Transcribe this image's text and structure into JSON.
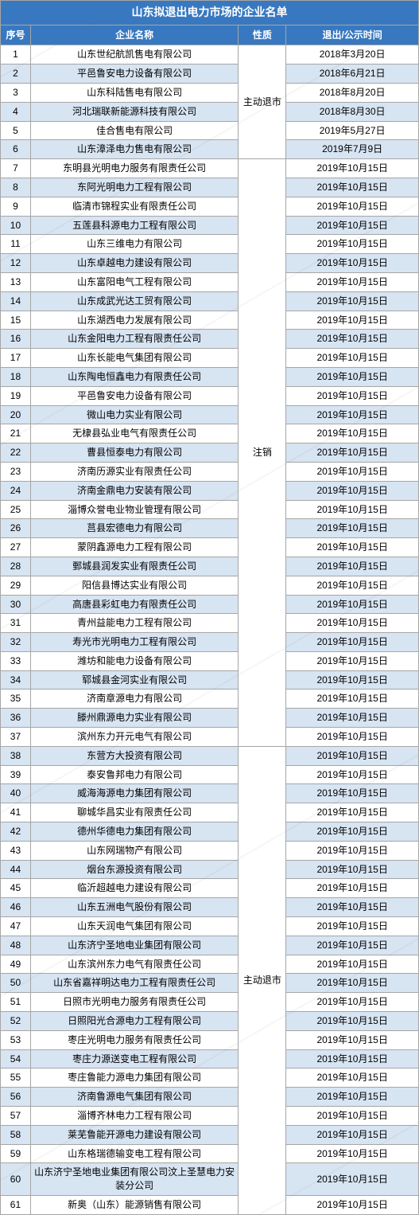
{
  "title": "山东拟退出电力市场的企业名单",
  "columns": [
    "序号",
    "企业名称",
    "性质",
    "退出/公示时间"
  ],
  "colors": {
    "header_bg": "#3878c0",
    "header_fg": "#ffffff",
    "row_odd_bg": "#ffffff",
    "row_even_bg": "#d7e4f2",
    "border": "#a6a6a6"
  },
  "type_groups": [
    {
      "label": "主动退市",
      "start": 1,
      "end": 6
    },
    {
      "label": "注销",
      "start": 7,
      "end": 37
    },
    {
      "label": "主动退市",
      "start": 38,
      "end": 61
    }
  ],
  "rows": [
    {
      "seq": 1,
      "name": "山东世纪航凯售电有限公司",
      "date": "2018年3月20日"
    },
    {
      "seq": 2,
      "name": "平邑鲁安电力设备有限公司",
      "date": "2018年6月21日"
    },
    {
      "seq": 3,
      "name": "山东科陆售电有限公司",
      "date": "2018年8月20日"
    },
    {
      "seq": 4,
      "name": "河北瑞联新能源科技有限公司",
      "date": "2018年8月30日"
    },
    {
      "seq": 5,
      "name": "佳合售电有限公司",
      "date": "2019年5月27日"
    },
    {
      "seq": 6,
      "name": "山东漳泽电力售电有限公司",
      "date": "2019年7月9日"
    },
    {
      "seq": 7,
      "name": "东明县光明电力服务有限责任公司",
      "date": "2019年10月15日"
    },
    {
      "seq": 8,
      "name": "东阿光明电力工程有限公司",
      "date": "2019年10月15日"
    },
    {
      "seq": 9,
      "name": "临清市锦程实业有限责任公司",
      "date": "2019年10月15日"
    },
    {
      "seq": 10,
      "name": "五莲县科源电力工程有限公司",
      "date": "2019年10月15日"
    },
    {
      "seq": 11,
      "name": "山东三维电力有限公司",
      "date": "2019年10月15日"
    },
    {
      "seq": 12,
      "name": "山东卓越电力建设有限公司",
      "date": "2019年10月15日"
    },
    {
      "seq": 13,
      "name": "山东富阳电气工程有限公司",
      "date": "2019年10月15日"
    },
    {
      "seq": 14,
      "name": "山东成武光达工贸有限公司",
      "date": "2019年10月15日"
    },
    {
      "seq": 15,
      "name": "山东湖西电力发展有限公司",
      "date": "2019年10月15日"
    },
    {
      "seq": 16,
      "name": "山东金阳电力工程有限责任公司",
      "date": "2019年10月15日"
    },
    {
      "seq": 17,
      "name": "山东长能电气集团有限公司",
      "date": "2019年10月15日"
    },
    {
      "seq": 18,
      "name": "山东陶电恒鑫电力有限责任公司",
      "date": "2019年10月15日"
    },
    {
      "seq": 19,
      "name": "平邑鲁安电力设备有限公司",
      "date": "2019年10月15日"
    },
    {
      "seq": 20,
      "name": "微山电力实业有限公司",
      "date": "2019年10月15日"
    },
    {
      "seq": 21,
      "name": "无棣县弘业电气有限责任公司",
      "date": "2019年10月15日"
    },
    {
      "seq": 22,
      "name": "曹县恒泰电力有限公司",
      "date": "2019年10月15日"
    },
    {
      "seq": 23,
      "name": "济南历源实业有限责任公司",
      "date": "2019年10月15日"
    },
    {
      "seq": 24,
      "name": "济南金鼎电力安装有限公司",
      "date": "2019年10月15日"
    },
    {
      "seq": 25,
      "name": "淄博众誉电业物业管理有限公司",
      "date": "2019年10月15日"
    },
    {
      "seq": 26,
      "name": "莒县宏德电力有限公司",
      "date": "2019年10月15日"
    },
    {
      "seq": 27,
      "name": "蒙阴鑫源电力工程有限公司",
      "date": "2019年10月15日"
    },
    {
      "seq": 28,
      "name": "鄄城县润发实业有限责任公司",
      "date": "2019年10月15日"
    },
    {
      "seq": 29,
      "name": "阳信县博达实业有限公司",
      "date": "2019年10月15日"
    },
    {
      "seq": 30,
      "name": "高唐县彩虹电力有限责任公司",
      "date": "2019年10月15日"
    },
    {
      "seq": 31,
      "name": "青州益能电力工程有限公司",
      "date": "2019年10月15日"
    },
    {
      "seq": 32,
      "name": "寿光市光明电力工程有限公司",
      "date": "2019年10月15日"
    },
    {
      "seq": 33,
      "name": "潍坊和能电力设备有限公司",
      "date": "2019年10月15日"
    },
    {
      "seq": 34,
      "name": "郓城县金河实业有限公司",
      "date": "2019年10月15日"
    },
    {
      "seq": 35,
      "name": "济南章源电力有限公司",
      "date": "2019年10月15日"
    },
    {
      "seq": 36,
      "name": "滕州鼎源电力实业有限公司",
      "date": "2019年10月15日"
    },
    {
      "seq": 37,
      "name": "滨州东力开元电气有限公司",
      "date": "2019年10月15日"
    },
    {
      "seq": 38,
      "name": "东营方大投资有限公司",
      "date": "2019年10月15日"
    },
    {
      "seq": 39,
      "name": "泰安鲁邦电力有限公司",
      "date": "2019年10月15日"
    },
    {
      "seq": 40,
      "name": "威海海源电力集团有限公司",
      "date": "2019年10月15日"
    },
    {
      "seq": 41,
      "name": "聊城华昌实业有限责任公司",
      "date": "2019年10月15日"
    },
    {
      "seq": 42,
      "name": "德州华德电力集团有限公司",
      "date": "2019年10月15日"
    },
    {
      "seq": 43,
      "name": "山东网瑞物产有限公司",
      "date": "2019年10月15日"
    },
    {
      "seq": 44,
      "name": "烟台东源投资有限公司",
      "date": "2019年10月15日"
    },
    {
      "seq": 45,
      "name": "临沂超越电力建设有限公司",
      "date": "2019年10月15日"
    },
    {
      "seq": 46,
      "name": "山东五洲电气股份有限公司",
      "date": "2019年10月15日"
    },
    {
      "seq": 47,
      "name": "山东天润电气集团有限公司",
      "date": "2019年10月15日"
    },
    {
      "seq": 48,
      "name": "山东济宁圣地电业集团有限公司",
      "date": "2019年10月15日"
    },
    {
      "seq": 49,
      "name": "山东滨州东力电气有限责任公司",
      "date": "2019年10月15日"
    },
    {
      "seq": 50,
      "name": "山东省嘉祥明达电力工程有限责任公司",
      "date": "2019年10月15日"
    },
    {
      "seq": 51,
      "name": "日照市光明电力服务有限责任公司",
      "date": "2019年10月15日"
    },
    {
      "seq": 52,
      "name": "日照阳光合源电力工程有限公司",
      "date": "2019年10月15日"
    },
    {
      "seq": 53,
      "name": "枣庄光明电力服务有限责任公司",
      "date": "2019年10月15日"
    },
    {
      "seq": 54,
      "name": "枣庄力源送变电工程有限公司",
      "date": "2019年10月15日"
    },
    {
      "seq": 55,
      "name": "枣庄鲁能力源电力集团有限公司",
      "date": "2019年10月15日"
    },
    {
      "seq": 56,
      "name": "济南鲁源电气集团有限公司",
      "date": "2019年10月15日"
    },
    {
      "seq": 57,
      "name": "淄博齐林电力工程有限公司",
      "date": "2019年10月15日"
    },
    {
      "seq": 58,
      "name": "莱芜鲁能开源电力建设有限公司",
      "date": "2019年10月15日"
    },
    {
      "seq": 59,
      "name": "山东格瑞德输变电工程有限公司",
      "date": "2019年10月15日"
    },
    {
      "seq": 60,
      "name": "山东济宁圣地电业集团有限公司汶上圣慧电力安装分公司",
      "date": "2019年10月15日"
    },
    {
      "seq": 61,
      "name": "新奥（山东）能源销售有限公司",
      "date": "2019年10月15日"
    }
  ]
}
